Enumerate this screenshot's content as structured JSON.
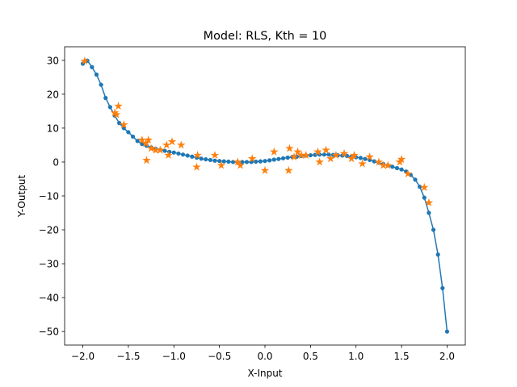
{
  "chart_data": {
    "type": "line",
    "title": "Model: RLS, Kth = 10",
    "xlabel": "X-Input",
    "ylabel": "Y-Output",
    "xlim": [
      -2.2,
      2.2
    ],
    "ylim": [
      -54,
      34
    ],
    "xticks": [
      -2.0,
      -1.5,
      -1.0,
      -0.5,
      0.0,
      0.5,
      1.0,
      1.5,
      2.0
    ],
    "xtick_labels": [
      "−2.0",
      "−1.5",
      "−1.0",
      "−0.5",
      "0.0",
      "0.5",
      "1.0",
      "1.5",
      "2.0"
    ],
    "yticks": [
      -50,
      -40,
      -30,
      -20,
      -10,
      0,
      10,
      20,
      30
    ],
    "ytick_labels": [
      "−50",
      "−40",
      "−30",
      "−20",
      "−10",
      "0",
      "10",
      "20",
      "30"
    ],
    "grid": false,
    "legend": "none",
    "series": [
      {
        "kind": "line-with-dot-markers",
        "color": "#1f77b4",
        "x": [
          -2.0,
          -1.95,
          -1.9,
          -1.85,
          -1.8,
          -1.75,
          -1.7,
          -1.65,
          -1.6,
          -1.55,
          -1.5,
          -1.45,
          -1.4,
          -1.35,
          -1.3,
          -1.25,
          -1.2,
          -1.15,
          -1.1,
          -1.05,
          -1.0,
          -0.95,
          -0.9,
          -0.85,
          -0.8,
          -0.75,
          -0.7,
          -0.65,
          -0.6,
          -0.55,
          -0.5,
          -0.45,
          -0.4,
          -0.35,
          -0.3,
          -0.25,
          -0.2,
          -0.15,
          -0.1,
          -0.05,
          0.0,
          0.05,
          0.1,
          0.15,
          0.2,
          0.25,
          0.3,
          0.35,
          0.4,
          0.45,
          0.5,
          0.55,
          0.6,
          0.65,
          0.7,
          0.75,
          0.8,
          0.85,
          0.9,
          0.95,
          1.0,
          1.05,
          1.1,
          1.15,
          1.2,
          1.25,
          1.3,
          1.35,
          1.4,
          1.45,
          1.5,
          1.55,
          1.6,
          1.65,
          1.7,
          1.75,
          1.8,
          1.85,
          1.9,
          1.95,
          2.0
        ],
        "y": [
          29.0,
          29.9,
          28.0,
          25.8,
          22.8,
          18.9,
          16.2,
          13.7,
          11.5,
          10.0,
          8.8,
          7.5,
          6.2,
          5.3,
          4.8,
          4.3,
          3.9,
          3.6,
          3.3,
          3.0,
          2.8,
          2.5,
          2.2,
          1.9,
          1.6,
          1.3,
          1.0,
          0.8,
          0.6,
          0.4,
          0.3,
          0.2,
          0.1,
          0.0,
          0.0,
          0.0,
          0.0,
          0.0,
          0.1,
          0.2,
          0.3,
          0.5,
          0.7,
          0.9,
          1.1,
          1.3,
          1.5,
          1.6,
          1.8,
          1.9,
          2.0,
          2.1,
          2.2,
          2.2,
          2.2,
          2.1,
          2.0,
          1.9,
          1.8,
          1.6,
          1.4,
          1.2,
          0.9,
          0.6,
          0.2,
          -0.2,
          -0.6,
          -1.0,
          -1.4,
          -1.8,
          -2.2,
          -2.8,
          -3.8,
          -5.2,
          -7.3,
          -10.5,
          -15.0,
          -20.0,
          -27.3,
          -37.2,
          -50.0
        ]
      },
      {
        "kind": "scatter-star",
        "color": "#ff7f0e",
        "x": [
          -1.98,
          -1.65,
          -1.63,
          -1.61,
          -1.55,
          -1.35,
          -1.31,
          -1.3,
          -1.28,
          -1.25,
          -1.2,
          -1.15,
          -1.08,
          -1.06,
          -1.02,
          -0.92,
          -0.75,
          -0.74,
          -0.55,
          -0.48,
          -0.3,
          -0.27,
          -0.14,
          0.0,
          0.1,
          0.26,
          0.27,
          0.32,
          0.36,
          0.4,
          0.45,
          0.58,
          0.6,
          0.67,
          0.72,
          0.78,
          0.87,
          0.95,
          0.98,
          1.07,
          1.15,
          1.25,
          1.3,
          1.35,
          1.48,
          1.5,
          1.57,
          1.75,
          1.8
        ],
        "y": [
          29.8,
          14.5,
          14.0,
          16.5,
          11.0,
          6.5,
          5.5,
          0.5,
          6.5,
          4.0,
          3.5,
          3.5,
          5.0,
          2.0,
          6.0,
          5.0,
          -1.5,
          2.0,
          2.0,
          -1.0,
          0.0,
          -1.0,
          1.0,
          -2.5,
          3.0,
          -2.5,
          4.0,
          1.5,
          3.0,
          2.0,
          2.0,
          3.0,
          0.0,
          3.5,
          1.0,
          2.0,
          2.5,
          1.0,
          2.0,
          -0.5,
          1.5,
          0.0,
          -1.0,
          -1.0,
          0.0,
          0.8,
          -3.5,
          -7.5,
          -12.0
        ]
      }
    ]
  }
}
